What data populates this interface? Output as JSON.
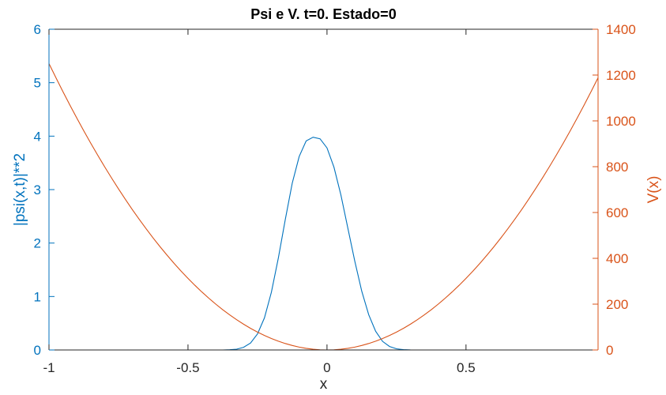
{
  "chart_data": {
    "type": "line",
    "title": "Psi e V. t=0. Estado=0",
    "xlabel": "x",
    "ylabel_left": "|psi(x,t)|**2",
    "ylabel_right": "V(x)",
    "xlim": [
      -1,
      0.975
    ],
    "ylim_left": [
      0,
      6
    ],
    "ylim_right": [
      0,
      1400
    ],
    "xticks": [
      -1,
      -0.5,
      0,
      0.5
    ],
    "xtick_labels": [
      "-1",
      "-0.5",
      "0",
      "0.5"
    ],
    "yticks_left": [
      0,
      1,
      2,
      3,
      4,
      5,
      6
    ],
    "yticks_left_labels": [
      "0",
      "1",
      "2",
      "3",
      "4",
      "5",
      "6"
    ],
    "yticks_right": [
      0,
      200,
      400,
      600,
      800,
      1000,
      1200,
      1400
    ],
    "yticks_right_labels": [
      "0",
      "200",
      "400",
      "600",
      "800",
      "1000",
      "1200",
      "1400"
    ],
    "grid": false,
    "colors": {
      "left": "#0072BD",
      "right": "#D95319",
      "axes": "#262626"
    },
    "series": [
      {
        "axis": "left",
        "color": "#0072BD",
        "x": [
          -1,
          -0.975,
          -0.95,
          -0.925,
          -0.9,
          -0.875,
          -0.85,
          -0.825,
          -0.8,
          -0.775,
          -0.75,
          -0.725,
          -0.7,
          -0.675,
          -0.65,
          -0.625,
          -0.6,
          -0.575,
          -0.55,
          -0.525,
          -0.5,
          -0.475,
          -0.45,
          -0.425,
          -0.4,
          -0.375,
          -0.35,
          -0.325,
          -0.3,
          -0.275,
          -0.25,
          -0.225,
          -0.2,
          -0.175,
          -0.15,
          -0.125,
          -0.1,
          -0.075,
          -0.05,
          -0.025,
          0,
          0.025,
          0.05,
          0.075,
          0.1,
          0.125,
          0.15,
          0.175,
          0.2,
          0.225,
          0.25,
          0.275,
          0.3,
          0.325,
          0.35,
          0.375,
          0.4,
          0.425,
          0.45,
          0.475,
          0.5,
          0.525,
          0.55,
          0.575,
          0.6,
          0.625,
          0.65,
          0.675,
          0.7,
          0.725,
          0.75,
          0.775,
          0.8,
          0.825,
          0.85,
          0.875,
          0.9,
          0.925,
          0.95,
          0.975
        ],
        "y": [
          0,
          0,
          0,
          0,
          0,
          0,
          0,
          0,
          0,
          0,
          0,
          0,
          0,
          0,
          0,
          0,
          0,
          0,
          0,
          0,
          0,
          0,
          0,
          0,
          0,
          0,
          0.004,
          0.015,
          0.05,
          0.13,
          0.3,
          0.6,
          1.08,
          1.72,
          2.44,
          3.12,
          3.62,
          3.91,
          3.98,
          3.95,
          3.78,
          3.42,
          2.9,
          2.28,
          1.66,
          1.1,
          0.66,
          0.35,
          0.16,
          0.065,
          0.022,
          0.006,
          0.001,
          0,
          0,
          0,
          0,
          0,
          0,
          0,
          0,
          0,
          0,
          0,
          0,
          0,
          0,
          0,
          0,
          0,
          0,
          0,
          0,
          0,
          0,
          0,
          0,
          0,
          0,
          0
        ]
      },
      {
        "axis": "right",
        "color": "#D95319",
        "function": "V(x) = 1250 * x^2",
        "x_step": 0.025,
        "x_range": [
          -1,
          0.975
        ]
      }
    ]
  }
}
